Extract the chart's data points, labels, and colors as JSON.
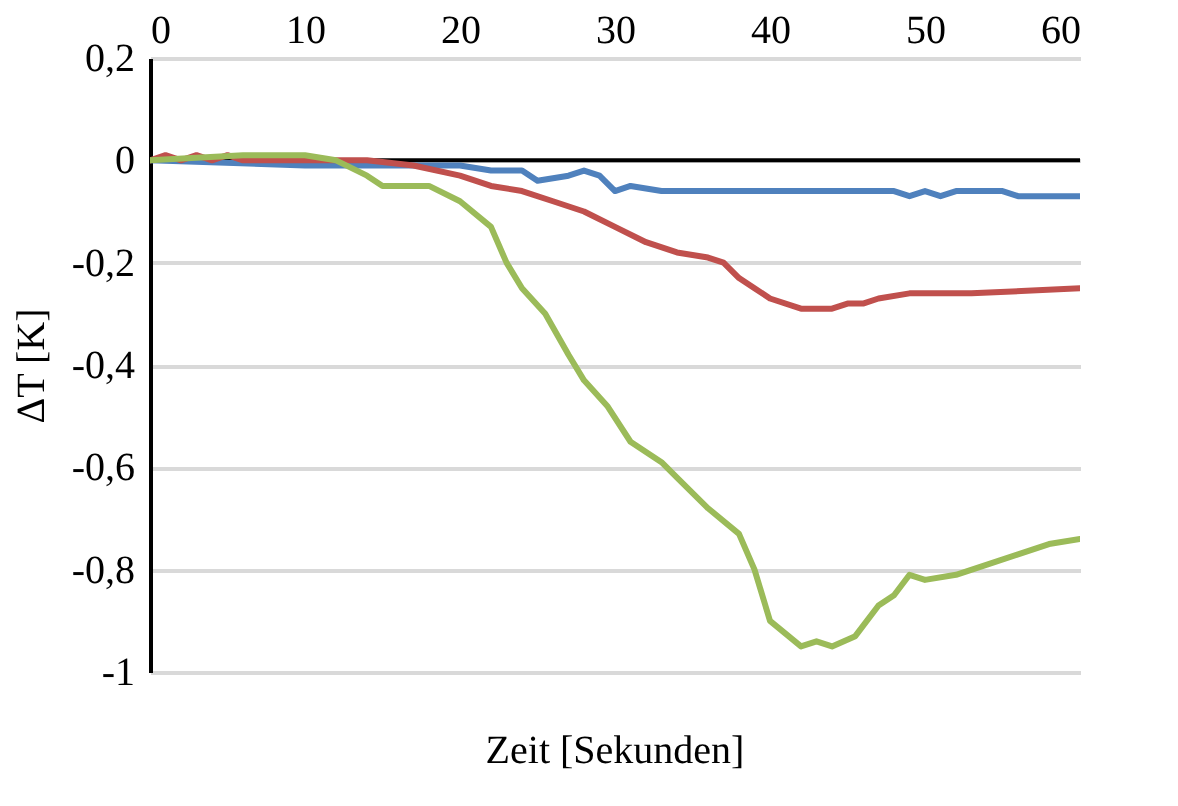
{
  "chart_data": {
    "type": "line",
    "xlabel": "Zeit [Sekunden]",
    "ylabel": "ΔT [K]",
    "xlim": [
      0,
      60
    ],
    "xticks": [
      0,
      10,
      20,
      30,
      40,
      50,
      60
    ],
    "ylim": [
      -1,
      0.2
    ],
    "yticks": [
      {
        "value": -1,
        "label": "-1"
      },
      {
        "value": -0.8,
        "label": "-0,8"
      },
      {
        "value": -0.6,
        "label": "-0,6"
      },
      {
        "value": -0.4,
        "label": "-0,4"
      },
      {
        "value": -0.2,
        "label": "-0,2"
      },
      {
        "value": 0,
        "label": "0"
      },
      {
        "value": 0.2,
        "label": "0,2"
      }
    ],
    "grid": "y",
    "marker": "none",
    "line_style": "solid",
    "ref_lines": [
      {
        "axis": "y",
        "value": 0,
        "color": "#000000"
      }
    ],
    "series": [
      {
        "color": "#4f81bd",
        "x": [
          0,
          10,
          20,
          22,
          24,
          25,
          27,
          28,
          29,
          30,
          31,
          33,
          35,
          40,
          45,
          48,
          49,
          50,
          51,
          52,
          55,
          56,
          58,
          60
        ],
        "values": [
          0,
          -0.01,
          -0.01,
          -0.02,
          -0.02,
          -0.04,
          -0.03,
          -0.02,
          -0.03,
          -0.06,
          -0.05,
          -0.06,
          -0.06,
          -0.06,
          -0.06,
          -0.06,
          -0.07,
          -0.06,
          -0.07,
          -0.06,
          -0.06,
          -0.07,
          -0.07,
          -0.07
        ]
      },
      {
        "color": "#c0504d",
        "x": [
          0,
          1,
          2,
          3,
          4,
          5,
          6,
          10,
          14,
          17,
          20,
          22,
          24,
          26,
          28,
          30,
          32,
          34,
          36,
          37,
          38,
          39,
          40,
          42,
          44,
          45,
          46,
          47,
          49,
          53,
          60
        ],
        "values": [
          0,
          0.01,
          0,
          0.01,
          0,
          0.01,
          0,
          0,
          0,
          -0.01,
          -0.03,
          -0.05,
          -0.06,
          -0.08,
          -0.1,
          -0.13,
          -0.16,
          -0.18,
          -0.19,
          -0.2,
          -0.23,
          -0.25,
          -0.27,
          -0.29,
          -0.29,
          -0.28,
          -0.28,
          -0.27,
          -0.26,
          -0.26,
          -0.25
        ]
      },
      {
        "color": "#9bbb59",
        "x": [
          0,
          6,
          10,
          12,
          14,
          15,
          18,
          20,
          22,
          23,
          24,
          25.5,
          27,
          28,
          29.5,
          31,
          33,
          34,
          36,
          38,
          39,
          40,
          42,
          43,
          44,
          45.5,
          47,
          48,
          49,
          50,
          52,
          54,
          56,
          58,
          60
        ],
        "values": [
          0,
          0.01,
          0.01,
          0,
          -0.03,
          -0.05,
          -0.05,
          -0.08,
          -0.13,
          -0.2,
          -0.25,
          -0.3,
          -0.38,
          -0.43,
          -0.48,
          -0.55,
          -0.59,
          -0.62,
          -0.68,
          -0.73,
          -0.8,
          -0.9,
          -0.95,
          -0.94,
          -0.95,
          -0.93,
          -0.87,
          -0.85,
          -0.81,
          -0.82,
          -0.81,
          -0.79,
          -0.77,
          -0.75,
          -0.74
        ]
      }
    ]
  }
}
